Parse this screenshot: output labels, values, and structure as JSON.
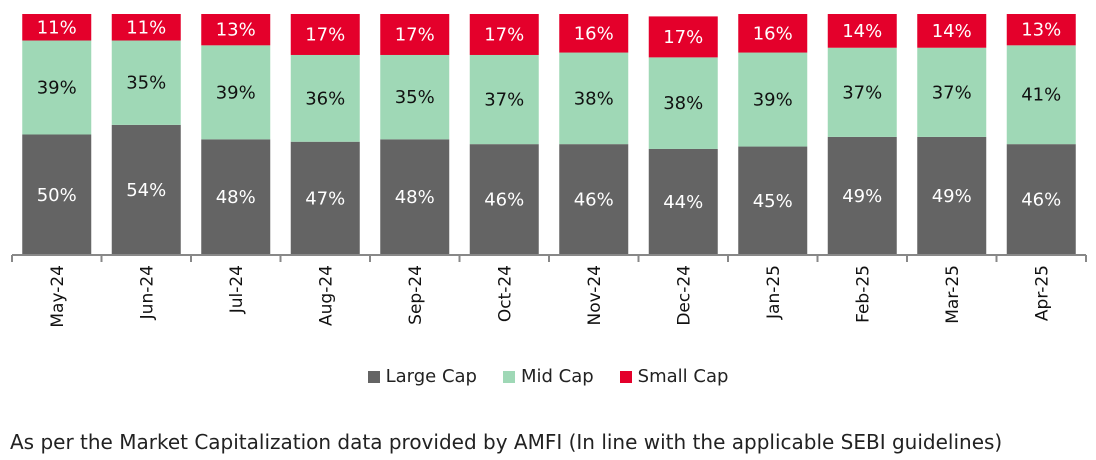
{
  "chart_data": {
    "type": "bar",
    "stacked": true,
    "normalized": true,
    "categories": [
      "May-24",
      "Jun-24",
      "Jul-24",
      "Aug-24",
      "Sep-24",
      "Oct-24",
      "Nov-24",
      "Dec-24",
      "Jan-25",
      "Feb-25",
      "Mar-25",
      "Apr-25"
    ],
    "series": [
      {
        "name": "Large Cap",
        "values": [
          50,
          54,
          48,
          47,
          48,
          46,
          46,
          44,
          45,
          49,
          49,
          46
        ],
        "color": "#646464",
        "label_color": "#ffffff"
      },
      {
        "name": "Mid Cap",
        "values": [
          39,
          35,
          39,
          36,
          35,
          37,
          38,
          38,
          39,
          37,
          37,
          41
        ],
        "color": "#9fd8b6",
        "label_color": "#111111"
      },
      {
        "name": "Small Cap",
        "values": [
          11,
          11,
          13,
          17,
          17,
          17,
          16,
          17,
          16,
          14,
          14,
          13
        ],
        "color": "#e4002b",
        "label_color": "#ffffff"
      }
    ],
    "ylim": [
      0,
      100
    ],
    "grid": false,
    "legend_position": "bottom"
  },
  "footnote": "As per the Market Capitalization data provided by AMFI (In line with the applicable SEBI guidelines)"
}
